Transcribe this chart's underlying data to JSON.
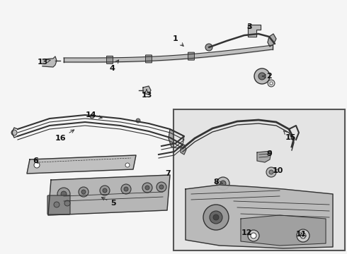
{
  "bg_color": "#f5f5f5",
  "box_bg": "#e8e8e8",
  "white": "#ffffff",
  "lc": "#333333",
  "dark": "#111111",
  "gray1": "#aaaaaa",
  "gray2": "#888888",
  "gray3": "#cccccc"
}
